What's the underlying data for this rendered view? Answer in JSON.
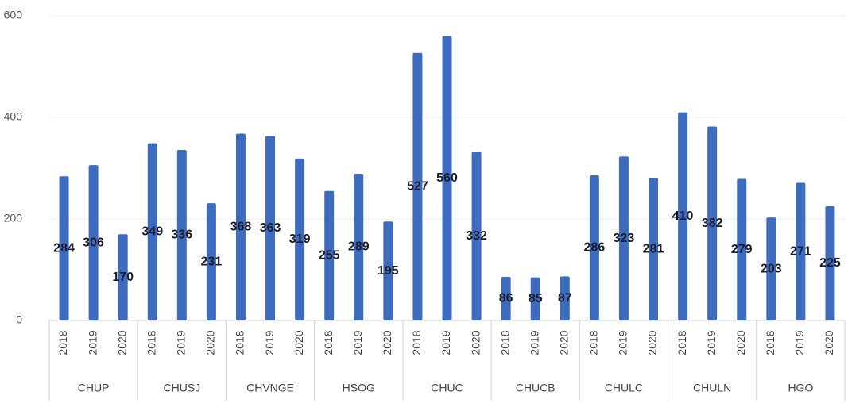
{
  "chart_data": {
    "type": "bar",
    "categories": [
      "CHUP",
      "CHUSJ",
      "CHVNGE",
      "HSOG",
      "CHUC",
      "CHUCB",
      "CHULC",
      "CHULN",
      "HGO"
    ],
    "subcategories": [
      "2018",
      "2019",
      "2020"
    ],
    "values": [
      [
        284,
        306,
        170
      ],
      [
        349,
        336,
        231
      ],
      [
        368,
        363,
        319
      ],
      [
        255,
        289,
        195
      ],
      [
        527,
        560,
        332
      ],
      [
        86,
        85,
        87
      ],
      [
        286,
        323,
        281
      ],
      [
        410,
        382,
        279
      ],
      [
        203,
        271,
        225
      ]
    ],
    "color": "#3d6cbf",
    "ylim": [
      0,
      600
    ],
    "yticks": [
      0,
      200,
      400,
      600
    ],
    "grid": true
  }
}
